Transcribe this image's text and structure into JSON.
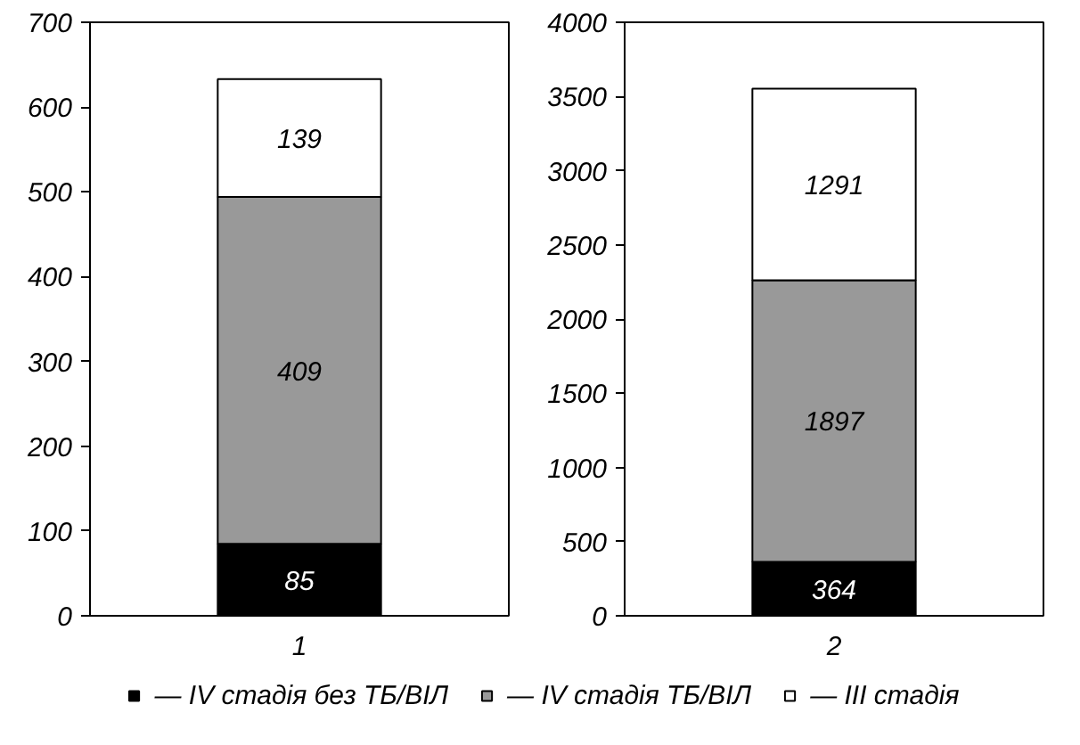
{
  "chart_data": [
    {
      "type": "bar",
      "stacked": true,
      "categories": [
        "1"
      ],
      "ylim": [
        0,
        700
      ],
      "yticks": [
        0,
        100,
        200,
        300,
        400,
        500,
        600,
        700
      ],
      "grid": false,
      "data_labels": true,
      "legend": "bottom",
      "series": [
        {
          "name": "— IV стадія без ТБ/ВІЛ",
          "color": "#000000",
          "values": [
            85
          ]
        },
        {
          "name": "— IV стадія ТБ/ВІЛ",
          "color": "#999999",
          "values": [
            409
          ]
        },
        {
          "name": "— III стадія",
          "color": "#ffffff",
          "values": [
            139
          ]
        }
      ]
    },
    {
      "type": "bar",
      "stacked": true,
      "categories": [
        "2"
      ],
      "ylim": [
        0,
        4000
      ],
      "yticks": [
        0,
        500,
        1000,
        1500,
        2000,
        2500,
        3000,
        3500,
        4000
      ],
      "grid": false,
      "data_labels": true,
      "series": [
        {
          "color": "#000000",
          "values": [
            364
          ]
        },
        {
          "color": "#999999",
          "values": [
            1897
          ]
        },
        {
          "color": "#ffffff",
          "values": [
            1291
          ]
        }
      ]
    }
  ]
}
